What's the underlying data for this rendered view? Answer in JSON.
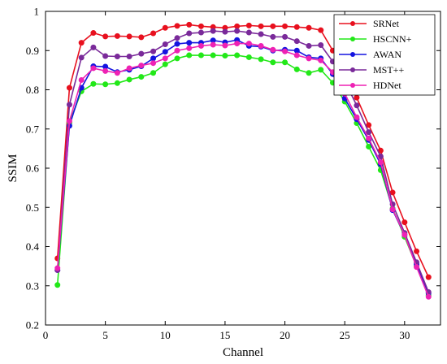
{
  "chart_data": {
    "type": "line",
    "xlabel": "Channel",
    "ylabel": "SSIM",
    "xlim": [
      0,
      33
    ],
    "ylim": [
      0.2,
      1.0
    ],
    "xticks": [
      0,
      5,
      10,
      15,
      20,
      25,
      30
    ],
    "yticks": [
      0.2,
      0.3,
      0.4,
      0.5,
      0.6,
      0.7,
      0.8,
      0.9,
      1.0
    ],
    "ytick_labels": [
      "0.2",
      "0.3",
      "0.4",
      "0.5",
      "0.6",
      "0.7",
      "0.8",
      "0.9",
      "1"
    ],
    "legend_position": "top-right",
    "grid": false,
    "x": [
      1,
      2,
      3,
      4,
      5,
      6,
      7,
      8,
      9,
      10,
      11,
      12,
      13,
      14,
      15,
      16,
      17,
      18,
      19,
      20,
      21,
      22,
      23,
      24,
      25,
      26,
      27,
      28,
      29,
      30,
      31,
      32
    ],
    "series": [
      {
        "name": "SRNet",
        "color": "#e8101e",
        "values": [
          0.37,
          0.805,
          0.92,
          0.945,
          0.936,
          0.937,
          0.936,
          0.934,
          0.944,
          0.958,
          0.963,
          0.966,
          0.962,
          0.96,
          0.958,
          0.962,
          0.964,
          0.962,
          0.962,
          0.962,
          0.96,
          0.958,
          0.952,
          0.9,
          0.845,
          0.78,
          0.71,
          0.645,
          0.538,
          0.462,
          0.388,
          0.322
        ]
      },
      {
        "name": "HSCNN+",
        "color": "#22e818",
        "values": [
          0.302,
          0.716,
          0.796,
          0.815,
          0.814,
          0.817,
          0.826,
          0.833,
          0.843,
          0.865,
          0.88,
          0.888,
          0.888,
          0.888,
          0.887,
          0.888,
          0.883,
          0.878,
          0.87,
          0.87,
          0.852,
          0.843,
          0.851,
          0.818,
          0.77,
          0.715,
          0.655,
          0.595,
          0.497,
          0.425,
          0.35,
          0.276
        ]
      },
      {
        "name": "AWAN",
        "color": "#1414e0",
        "values": [
          0.34,
          0.708,
          0.805,
          0.86,
          0.859,
          0.845,
          0.851,
          0.86,
          0.88,
          0.897,
          0.917,
          0.92,
          0.92,
          0.926,
          0.921,
          0.927,
          0.912,
          0.91,
          0.9,
          0.902,
          0.9,
          0.883,
          0.88,
          0.84,
          0.778,
          0.725,
          0.672,
          0.61,
          0.493,
          0.43,
          0.355,
          0.281
        ]
      },
      {
        "name": "MST++",
        "color": "#7a2a9a",
        "values": [
          0.34,
          0.762,
          0.882,
          0.908,
          0.886,
          0.885,
          0.885,
          0.892,
          0.898,
          0.916,
          0.932,
          0.944,
          0.946,
          0.95,
          0.948,
          0.95,
          0.946,
          0.942,
          0.935,
          0.935,
          0.924,
          0.912,
          0.914,
          0.872,
          0.822,
          0.76,
          0.692,
          0.63,
          0.508,
          0.435,
          0.36,
          0.284
        ]
      },
      {
        "name": "HDNet",
        "color": "#ee22b4",
        "values": [
          0.345,
          0.72,
          0.825,
          0.855,
          0.848,
          0.843,
          0.855,
          0.862,
          0.868,
          0.88,
          0.9,
          0.906,
          0.912,
          0.915,
          0.913,
          0.918,
          0.918,
          0.912,
          0.902,
          0.898,
          0.888,
          0.88,
          0.875,
          0.845,
          0.79,
          0.73,
          0.676,
          0.615,
          0.495,
          0.43,
          0.348,
          0.272
        ]
      }
    ]
  }
}
